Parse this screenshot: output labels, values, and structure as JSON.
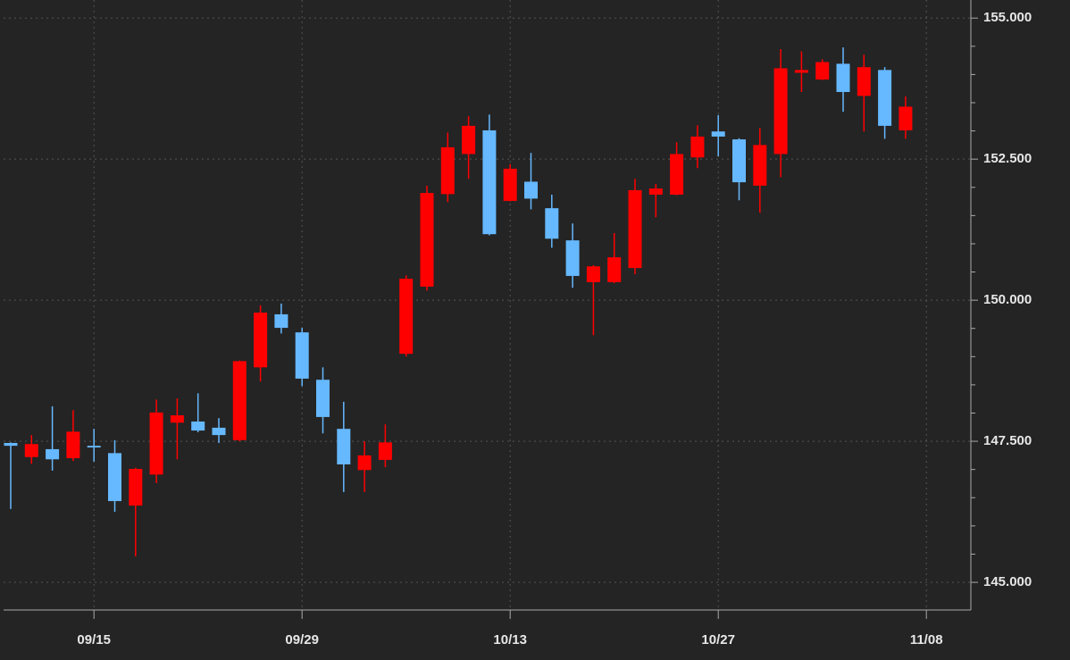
{
  "chart_data": {
    "type": "candlestick",
    "categories": [
      null,
      null,
      null,
      null,
      "09/15",
      null,
      null,
      null,
      null,
      null,
      null,
      null,
      null,
      null,
      "09/29",
      null,
      null,
      null,
      null,
      null,
      null,
      null,
      null,
      null,
      "10/13",
      null,
      null,
      null,
      null,
      null,
      null,
      null,
      null,
      null,
      "10/27",
      null,
      null,
      null,
      null,
      null,
      null,
      null,
      null,
      null,
      "11/08"
    ],
    "open": [
      147.47,
      147.22,
      147.36,
      147.2,
      147.42,
      147.29,
      146.36,
      146.91,
      147.83,
      147.85,
      147.74,
      147.52,
      148.81,
      149.75,
      149.43,
      148.59,
      147.72,
      146.99,
      147.17,
      149.05,
      150.24,
      151.88,
      152.59,
      153.01,
      151.76,
      152.1,
      151.63,
      151.06,
      150.32,
      150.32,
      150.57,
      151.87,
      151.87,
      152.53,
      152.99,
      152.85,
      152.03,
      152.59,
      154.03,
      153.91,
      154.19,
      153.62,
      154.08,
      153.01,
      null
    ],
    "high": [
      147.48,
      147.61,
      148.12,
      148.05,
      147.72,
      147.52,
      147.03,
      148.24,
      148.26,
      148.35,
      147.91,
      148.93,
      149.91,
      149.94,
      149.51,
      148.81,
      148.2,
      147.5,
      147.8,
      150.44,
      152.03,
      152.97,
      153.26,
      153.29,
      152.41,
      152.61,
      151.87,
      151.36,
      150.62,
      151.19,
      152.15,
      152.06,
      152.8,
      153.1,
      153.28,
      152.87,
      153.05,
      154.45,
      154.41,
      154.27,
      154.48,
      154.35,
      154.13,
      153.61,
      null
    ],
    "low": [
      146.3,
      147.1,
      146.98,
      147.15,
      147.14,
      146.25,
      145.46,
      146.76,
      147.18,
      147.66,
      147.47,
      147.5,
      148.56,
      149.41,
      148.48,
      147.64,
      146.6,
      146.6,
      147.04,
      149.0,
      150.17,
      151.74,
      152.15,
      151.15,
      151.75,
      151.61,
      150.93,
      150.22,
      149.38,
      150.3,
      150.46,
      151.47,
      151.86,
      152.34,
      152.55,
      151.77,
      151.55,
      152.18,
      153.69,
      153.9,
      153.34,
      152.99,
      152.86,
      152.86,
      null
    ],
    "close": [
      147.42,
      147.45,
      147.18,
      147.67,
      147.39,
      146.44,
      147.01,
      148.01,
      147.96,
      147.69,
      147.61,
      148.92,
      149.78,
      149.51,
      148.61,
      147.93,
      147.09,
      147.25,
      147.48,
      150.38,
      151.9,
      152.71,
      153.09,
      151.17,
      152.33,
      151.8,
      151.09,
      150.43,
      150.6,
      150.76,
      151.95,
      151.98,
      152.59,
      152.9,
      152.9,
      152.09,
      152.75,
      154.11,
      154.08,
      154.22,
      153.69,
      154.13,
      153.09,
      153.43,
      null
    ],
    "up_color": "#ff0000",
    "down_color": "#66b8ff",
    "ylim": [
      144.51,
      155.32
    ],
    "yticks": [
      {
        "value": 145,
        "label": "145.000"
      },
      {
        "value": 147.5,
        "label": "147.500"
      },
      {
        "value": 150,
        "label": "150.000"
      },
      {
        "value": 152.5,
        "label": "152.500"
      },
      {
        "value": 155,
        "label": "155.000"
      }
    ],
    "yminorticks": [
      145.5,
      146,
      146.5,
      147,
      148,
      148.5,
      149,
      149.5,
      150.5,
      151,
      151.5,
      152,
      153,
      153.5,
      154,
      154.5
    ],
    "grid": true
  }
}
